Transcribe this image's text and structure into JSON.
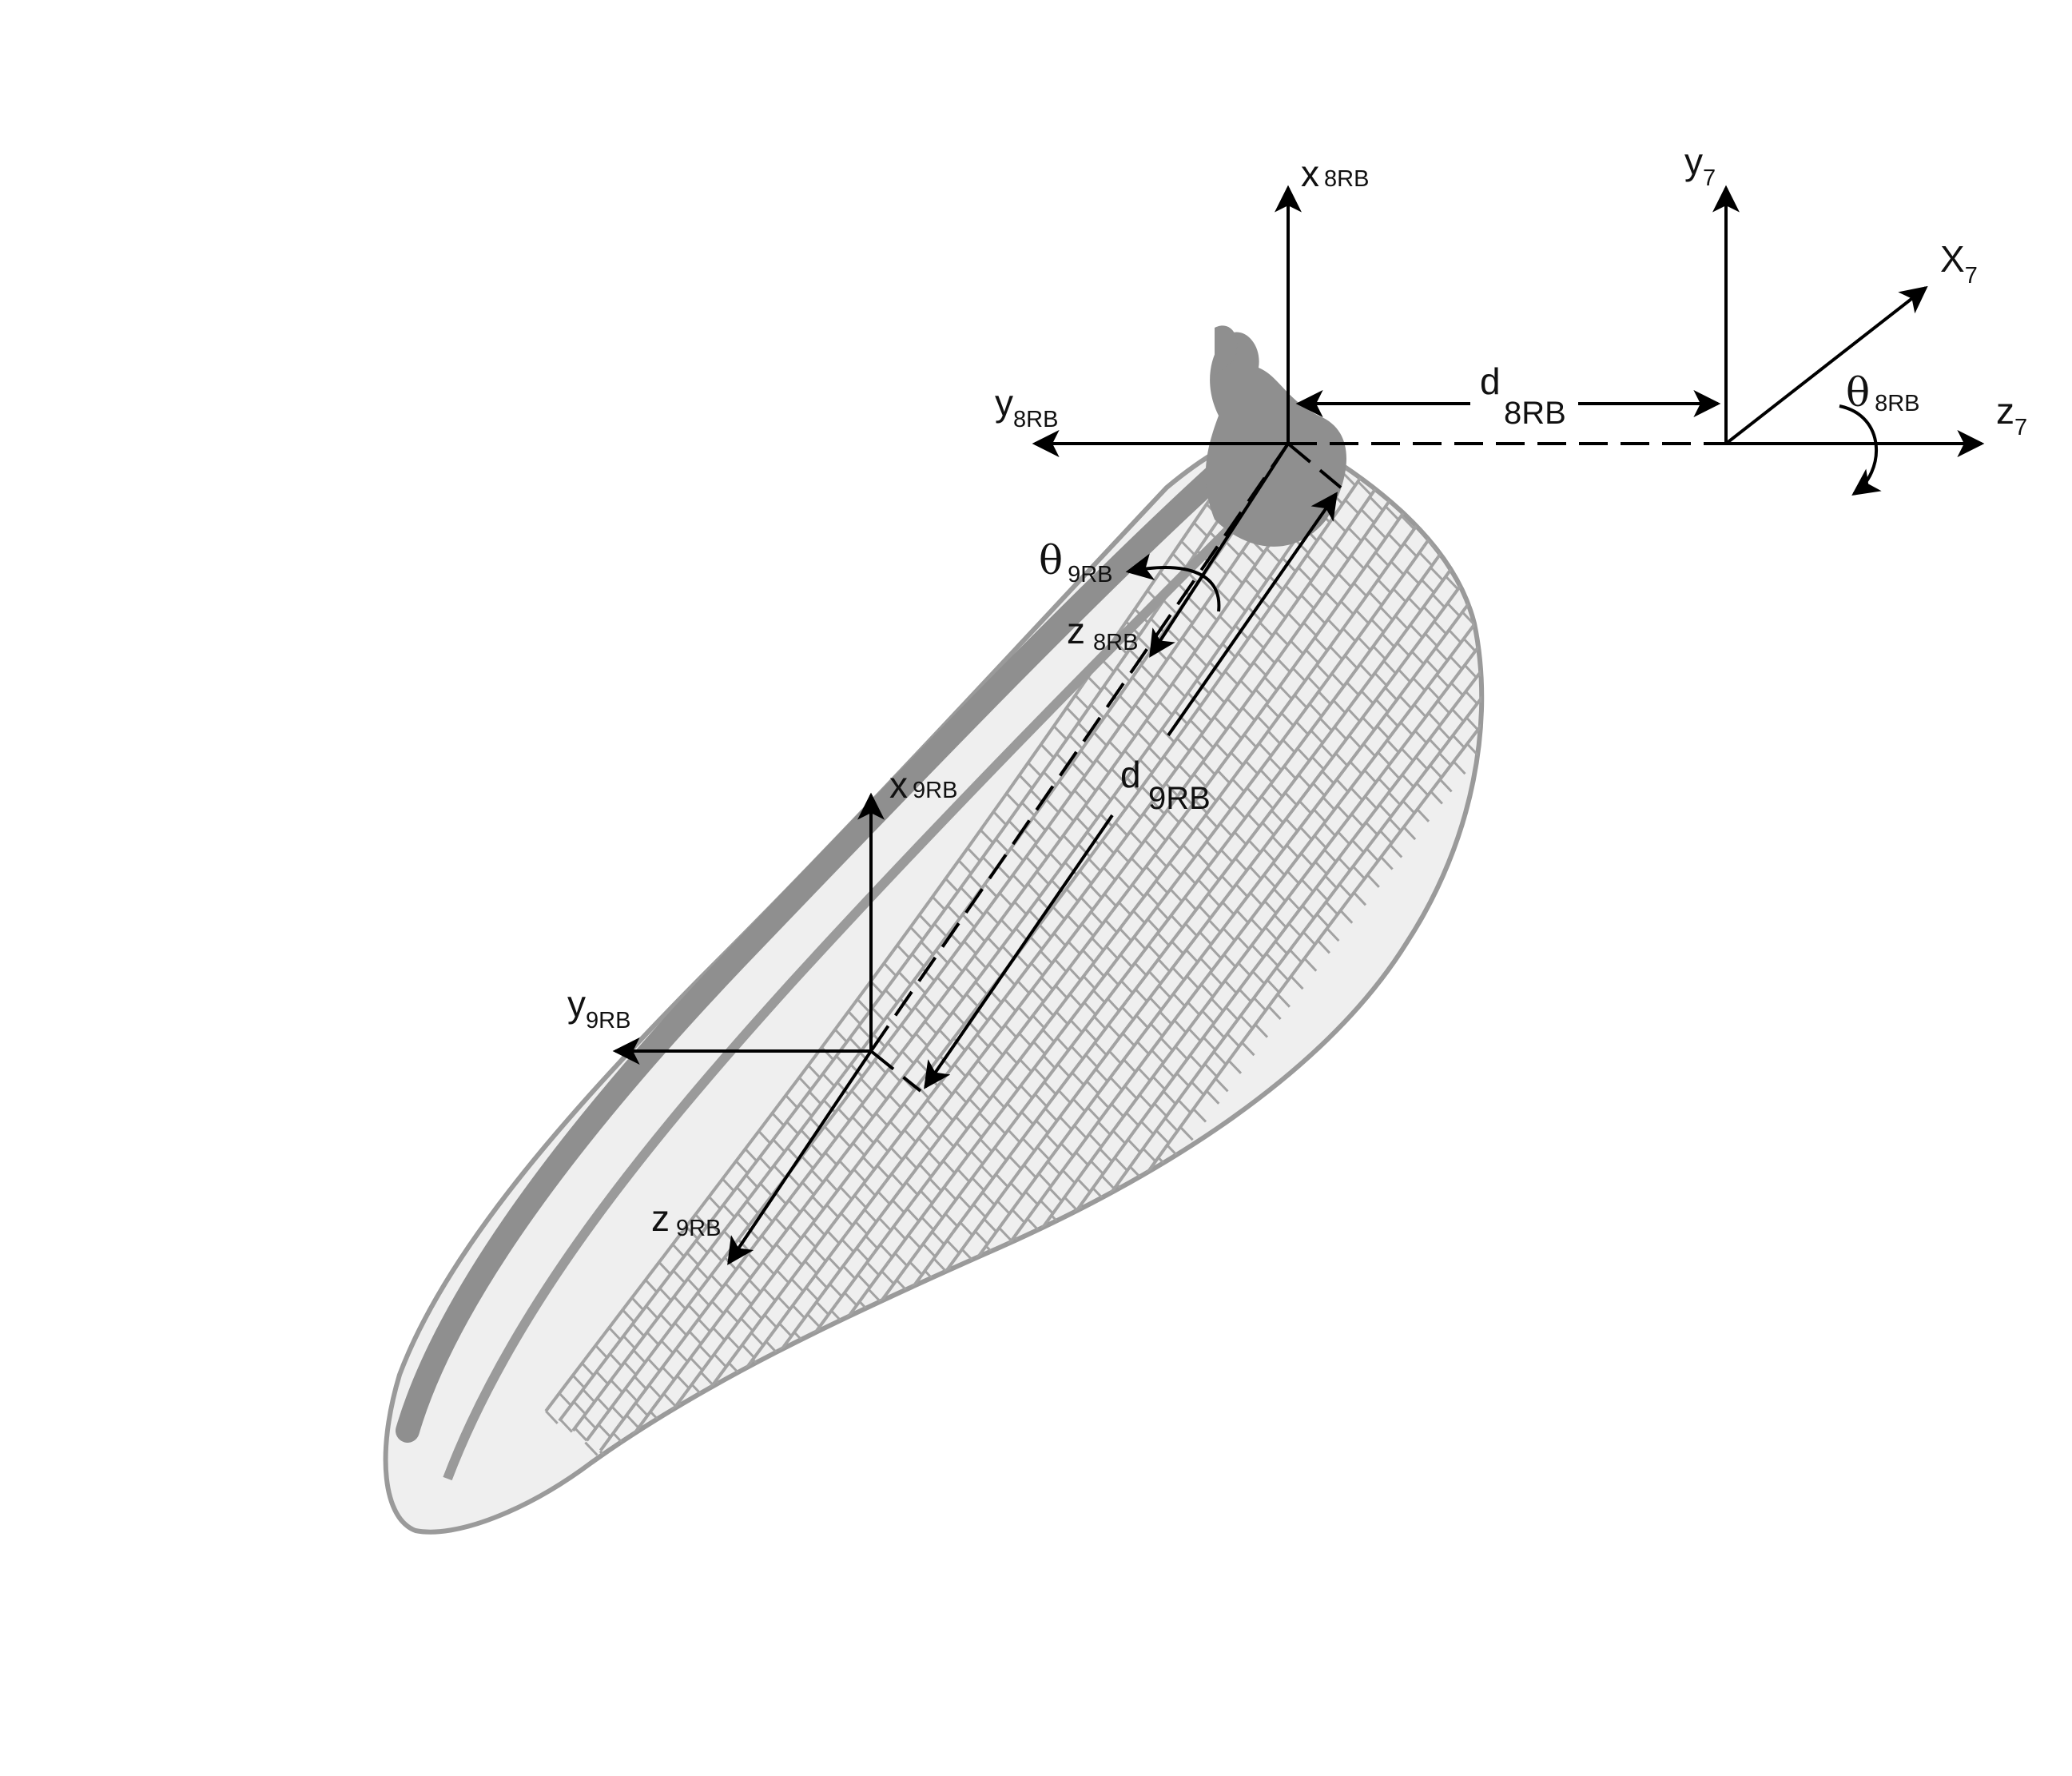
{
  "colors": {
    "wing_fill": "#d6d6d6",
    "wing_dark": "#8f8f8f",
    "wing_vein": "#a2a2a2",
    "ink": "#000000"
  },
  "frames": {
    "f8": {
      "x": "x",
      "x_sub": "8RB",
      "y": "y",
      "y_sub": "8RB",
      "z": "z",
      "z_sub": "8RB"
    },
    "f7": {
      "y": "y",
      "y_sub": "7",
      "X": "X",
      "X_sub": "7",
      "z": "z",
      "z_sub": "7"
    },
    "f9": {
      "x": "x",
      "x_sub": "9RB",
      "y": "y",
      "y_sub": "9RB",
      "z": "z",
      "z_sub": "9RB"
    }
  },
  "distances": {
    "d8": {
      "d": "d",
      "sub": "8RB"
    },
    "d9": {
      "d": "d",
      "sub": "9RB"
    }
  },
  "angles": {
    "theta8": {
      "symbol": "θ",
      "sub": "8RB"
    },
    "theta9": {
      "symbol": "θ",
      "sub": "9RB"
    }
  }
}
